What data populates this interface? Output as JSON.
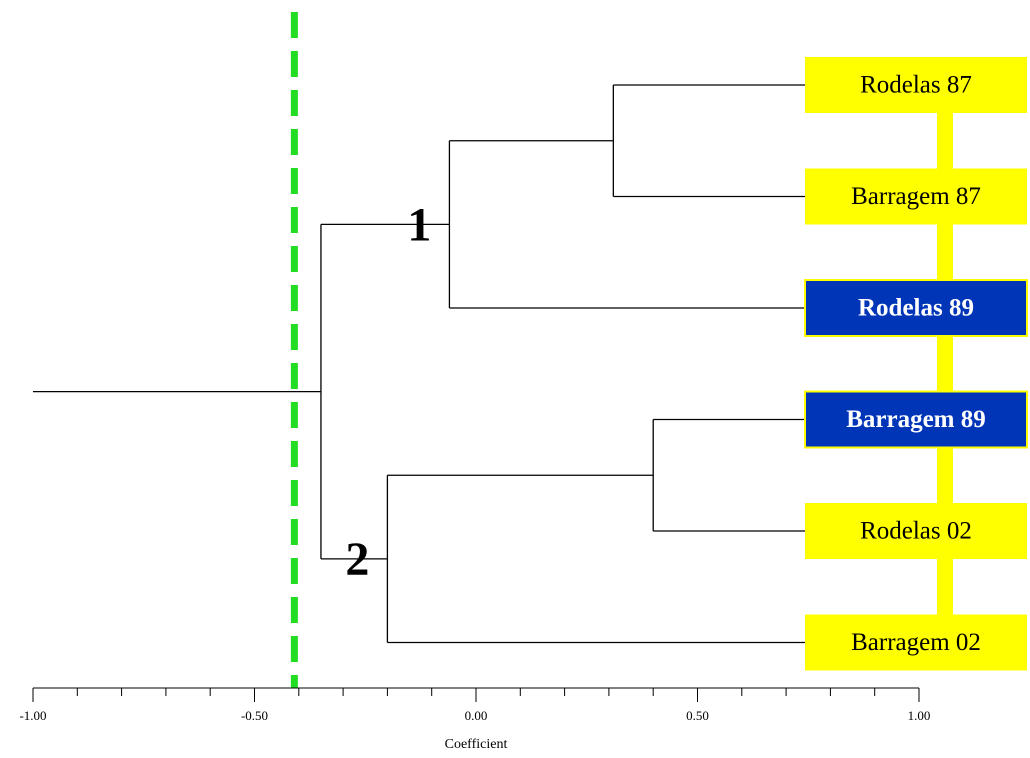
{
  "chart_data": {
    "type": "dendrogram",
    "xlabel": "Coefficient",
    "xlim": [
      -1.0,
      1.0
    ],
    "x_ticks": [
      "-1.00",
      "-0.50",
      "0.00",
      "0.50",
      "1.00"
    ],
    "cut_line": {
      "value": -0.41,
      "color": "#22dd22",
      "style": "dashed"
    },
    "root_value": -0.35,
    "leaves": [
      {
        "name": "Rodelas 87",
        "highlight": false
      },
      {
        "name": "Barragem 87",
        "highlight": false
      },
      {
        "name": "Rodelas 89",
        "highlight": true
      },
      {
        "name": "Barragem 89",
        "highlight": true
      },
      {
        "name": "Rodelas 02",
        "highlight": false
      },
      {
        "name": "Barragem 02",
        "highlight": false
      }
    ],
    "merges": [
      {
        "id": "m1",
        "left": "Rodelas 87",
        "right": "Barragem 87",
        "value": 0.31
      },
      {
        "id": "m2",
        "left": "m1",
        "right": "Rodelas 89",
        "value": -0.06
      },
      {
        "id": "m3",
        "left": "Barragem 89",
        "right": "Rodelas 02",
        "value": 0.4
      },
      {
        "id": "m4",
        "left": "m3",
        "right": "Barragem 02",
        "value": -0.2
      },
      {
        "id": "m5",
        "left": "m2",
        "right": "m4",
        "value": -0.35
      }
    ],
    "cluster_labels": [
      {
        "text": "1",
        "merge": "m2"
      },
      {
        "text": "2",
        "merge": "m4"
      }
    ],
    "colors": {
      "leaf_box": "#ffff00",
      "leaf_box_highlight": "#0035b8",
      "leaf_text": "#000000",
      "leaf_text_highlight": "#ffffff",
      "connector": "#ffff00",
      "branch": "#000000"
    }
  }
}
